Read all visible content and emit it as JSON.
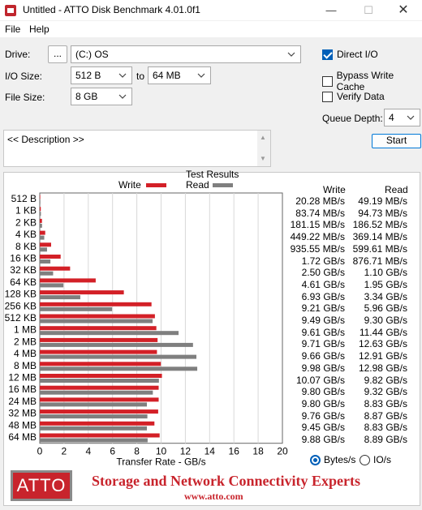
{
  "window": {
    "title": "Untitled - ATTO Disk Benchmark 4.01.0f1",
    "minimize": "—",
    "maximize": "☐",
    "close": "✕"
  },
  "menu": {
    "file": "File",
    "help": "Help"
  },
  "drive": {
    "label": "Drive:",
    "browse": "...",
    "value": "(C:) OS"
  },
  "io_size": {
    "label": "I/O Size:",
    "from": "512 B",
    "to_label": "to",
    "to": "64 MB"
  },
  "file_size": {
    "label": "File Size:",
    "value": "8 GB"
  },
  "options": {
    "direct_io": {
      "label": "Direct I/O",
      "checked": true
    },
    "bypass_write_cache": {
      "label": "Bypass Write Cache",
      "checked": false
    },
    "verify_data": {
      "label": "Verify Data",
      "checked": false
    },
    "queue_depth_label": "Queue Depth:",
    "queue_depth": "4",
    "start": "Start"
  },
  "description": {
    "text": "<< Description >>"
  },
  "results": {
    "title": "Test Results",
    "write_label": "Write",
    "read_label": "Read",
    "col_write": "Write",
    "col_read": "Read",
    "xlabel": "Transfer Rate - GB/s",
    "unit_bytes": "Bytes/s",
    "unit_io": "IO/s",
    "rows": [
      {
        "size": "512 B",
        "write": "20.28 MB/s",
        "read": "49.19 MB/s"
      },
      {
        "size": "1 KB",
        "write": "83.74 MB/s",
        "read": "94.73 MB/s"
      },
      {
        "size": "2 KB",
        "write": "181.15 MB/s",
        "read": "186.52 MB/s"
      },
      {
        "size": "4 KB",
        "write": "449.22 MB/s",
        "read": "369.14 MB/s"
      },
      {
        "size": "8 KB",
        "write": "935.55 MB/s",
        "read": "599.61 MB/s"
      },
      {
        "size": "16 KB",
        "write": "1.72 GB/s",
        "read": "876.71 MB/s"
      },
      {
        "size": "32 KB",
        "write": "2.50 GB/s",
        "read": "1.10 GB/s"
      },
      {
        "size": "64 KB",
        "write": "4.61 GB/s",
        "read": "1.95 GB/s"
      },
      {
        "size": "128 KB",
        "write": "6.93 GB/s",
        "read": "3.34 GB/s"
      },
      {
        "size": "256 KB",
        "write": "9.21 GB/s",
        "read": "5.96 GB/s"
      },
      {
        "size": "512 KB",
        "write": "9.49 GB/s",
        "read": "9.30 GB/s"
      },
      {
        "size": "1 MB",
        "write": "9.61 GB/s",
        "read": "11.44 GB/s"
      },
      {
        "size": "2 MB",
        "write": "9.71 GB/s",
        "read": "12.63 GB/s"
      },
      {
        "size": "4 MB",
        "write": "9.66 GB/s",
        "read": "12.91 GB/s"
      },
      {
        "size": "8 MB",
        "write": "9.98 GB/s",
        "read": "12.98 GB/s"
      },
      {
        "size": "12 MB",
        "write": "10.07 GB/s",
        "read": "9.82 GB/s"
      },
      {
        "size": "16 MB",
        "write": "9.80 GB/s",
        "read": "9.32 GB/s"
      },
      {
        "size": "24 MB",
        "write": "9.80 GB/s",
        "read": "8.83 GB/s"
      },
      {
        "size": "32 MB",
        "write": "9.76 GB/s",
        "read": "8.87 GB/s"
      },
      {
        "size": "48 MB",
        "write": "9.45 GB/s",
        "read": "8.83 GB/s"
      },
      {
        "size": "64 MB",
        "write": "9.88 GB/s",
        "read": "8.89 GB/s"
      }
    ]
  },
  "chart_data": {
    "type": "bar",
    "orientation": "horizontal",
    "title": "Test Results",
    "xlabel": "Transfer Rate - GB/s",
    "xlim": [
      0,
      20
    ],
    "xticks": [
      "0",
      "2",
      "4",
      "6",
      "8",
      "10",
      "12",
      "14",
      "16",
      "18",
      "20"
    ],
    "grid": true,
    "legend": "top",
    "categories": [
      "512 B",
      "1 KB",
      "2 KB",
      "4 KB",
      "8 KB",
      "16 KB",
      "32 KB",
      "64 KB",
      "128 KB",
      "256 KB",
      "512 KB",
      "1 MB",
      "2 MB",
      "4 MB",
      "8 MB",
      "12 MB",
      "16 MB",
      "24 MB",
      "32 MB",
      "48 MB",
      "64 MB"
    ],
    "series": [
      {
        "name": "Write",
        "color": "#d32027",
        "values": [
          0.02028,
          0.08374,
          0.18115,
          0.44922,
          0.93555,
          1.72,
          2.5,
          4.61,
          6.93,
          9.21,
          9.49,
          9.61,
          9.71,
          9.66,
          9.98,
          10.07,
          9.8,
          9.8,
          9.76,
          9.45,
          9.88
        ]
      },
      {
        "name": "Read",
        "color": "#7f7f7f",
        "values": [
          0.04919,
          0.09473,
          0.18652,
          0.36914,
          0.59961,
          0.87671,
          1.1,
          1.95,
          3.34,
          5.96,
          9.3,
          11.44,
          12.63,
          12.91,
          12.98,
          9.82,
          9.32,
          8.83,
          8.87,
          8.83,
          8.89
        ]
      }
    ]
  },
  "banner": {
    "logo": "ATTO",
    "tagline": "Storage and Network Connectivity Experts",
    "url": "www.atto.com"
  },
  "colors": {
    "write": "#d32027",
    "read": "#7f7f7f",
    "accent": "#005fb8",
    "brand": "#c8242c"
  }
}
